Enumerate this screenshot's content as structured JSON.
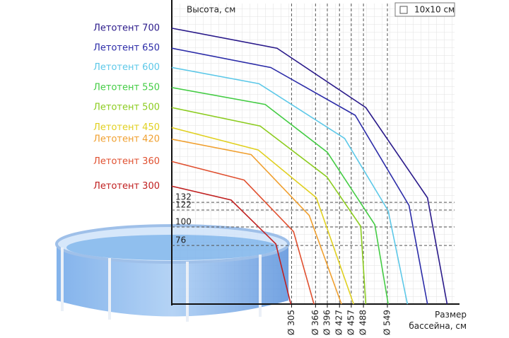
{
  "chart_data": {
    "type": "line",
    "y_label": "Высота, см",
    "x_label": "Размер бассейна, см",
    "grid_legend": "10x10 см",
    "xlim": [
      0,
      720
    ],
    "ylim": [
      0,
      390
    ],
    "xticks": [
      {
        "value": 305,
        "label": "Ø 305"
      },
      {
        "value": 366,
        "label": "Ø 366"
      },
      {
        "value": 396,
        "label": "Ø 396"
      },
      {
        "value": 427,
        "label": "Ø 427"
      },
      {
        "value": 457,
        "label": "Ø 457"
      },
      {
        "value": 488,
        "label": "Ø 488"
      },
      {
        "value": 549,
        "label": "Ø 549"
      }
    ],
    "yticks": [
      132,
      122,
      100,
      76
    ],
    "grid": true,
    "series": [
      {
        "name": "Летотент 700",
        "color": "#2a1a8a",
        "x": [
          0,
          268,
          494,
          651,
          701
        ],
        "values": [
          358,
          332,
          255,
          138,
          0
        ]
      },
      {
        "name": "Летотент 650",
        "color": "#2c2ca8",
        "x": [
          0,
          252,
          467,
          604,
          651
        ],
        "values": [
          332,
          307,
          245,
          128,
          0
        ]
      },
      {
        "name": "Летотент 600",
        "color": "#5cc8e8",
        "x": [
          0,
          222,
          440,
          551,
          600
        ],
        "values": [
          307,
          286,
          215,
          121,
          0
        ]
      },
      {
        "name": "Летотент 550",
        "color": "#44cc44",
        "x": [
          0,
          238,
          396,
          517,
          551
        ],
        "values": [
          281,
          259,
          197,
          103,
          0
        ]
      },
      {
        "name": "Летотент 500",
        "color": "#8ccc20",
        "x": [
          0,
          225,
          395,
          481,
          494
        ],
        "values": [
          255,
          231,
          165,
          101,
          0
        ]
      },
      {
        "name": "Летотент 450",
        "color": "#e0d020",
        "x": [
          0,
          220,
          368,
          463
        ],
        "values": [
          229,
          200,
          138,
          0
        ]
      },
      {
        "name": "Летотент 420",
        "color": "#f0a030",
        "x": [
          0,
          202,
          350,
          432
        ],
        "values": [
          214,
          194,
          115,
          0
        ]
      },
      {
        "name": "Летотент 360",
        "color": "#e05030",
        "x": [
          0,
          184,
          310,
          362
        ],
        "values": [
          185,
          161,
          94,
          0
        ]
      },
      {
        "name": "Летотент 300",
        "color": "#c02020",
        "x": [
          0,
          151,
          265,
          303
        ],
        "values": [
          153,
          135,
          78,
          0
        ]
      }
    ]
  }
}
